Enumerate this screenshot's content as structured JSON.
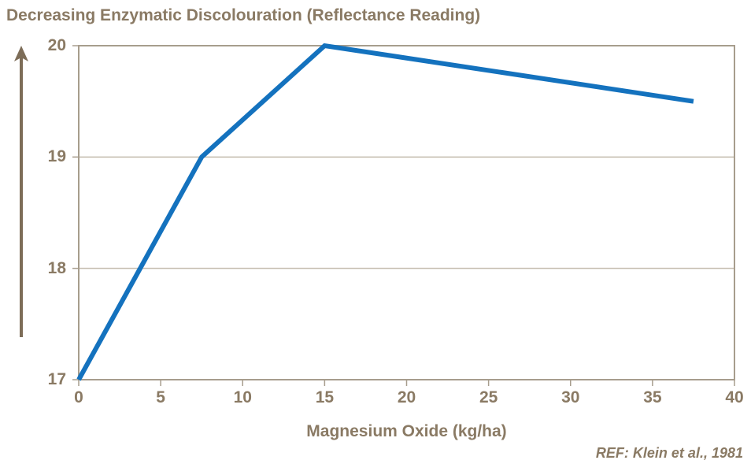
{
  "title": "Decreasing Enzymatic Discolouration (Reflectance Reading)",
  "x_axis_label": "Magnesium Oxide (kg/ha)",
  "reference": "REF: Klein et al., 1981",
  "colors": {
    "text": "#8a7a64",
    "line": "#1472be",
    "border": "#a79d8d",
    "grid": "#c3bbad",
    "arrow": "#7d6d58",
    "background": "#ffffff"
  },
  "chart_data": {
    "type": "line",
    "title": "Decreasing Enzymatic Discolouration (Reflectance Reading)",
    "xlabel": "Magnesium Oxide (kg/ha)",
    "ylabel": "",
    "x": [
      0,
      7.5,
      15,
      37.5
    ],
    "y": [
      17,
      19,
      20,
      19.5
    ],
    "xlim": [
      0,
      40
    ],
    "ylim": [
      17,
      20
    ],
    "x_ticks": [
      0,
      5,
      10,
      15,
      20,
      25,
      30,
      35,
      40
    ],
    "y_ticks": [
      17,
      18,
      19,
      20
    ],
    "grid": "horizontal",
    "legend": "none",
    "line_color": "#1472be",
    "annotation": "REF: Klein et al., 1981"
  }
}
